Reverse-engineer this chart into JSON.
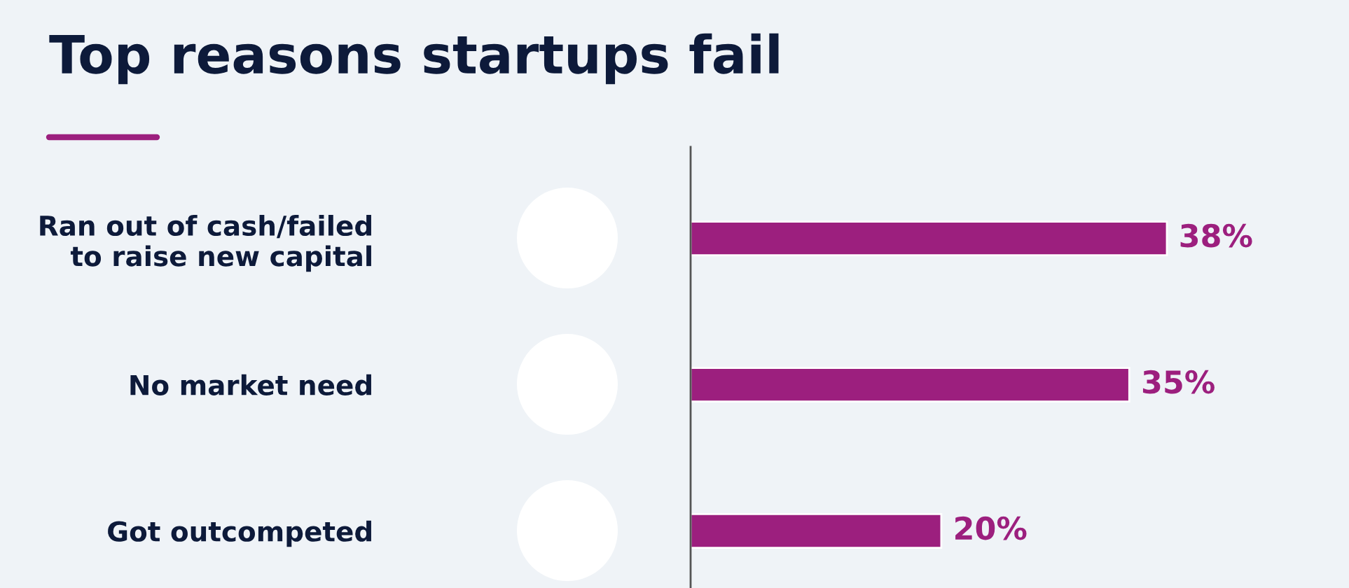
{
  "chart_data": {
    "type": "bar",
    "orientation": "horizontal",
    "title": "Top reasons startups fail",
    "categories": [
      "Ran out of cash/failed\nto raise new capital",
      "No market need",
      "Got outcompeted"
    ],
    "values": [
      38,
      35,
      20
    ],
    "value_labels": [
      "38%",
      "35%",
      "20%"
    ],
    "color": "#9c1f7e"
  }
}
